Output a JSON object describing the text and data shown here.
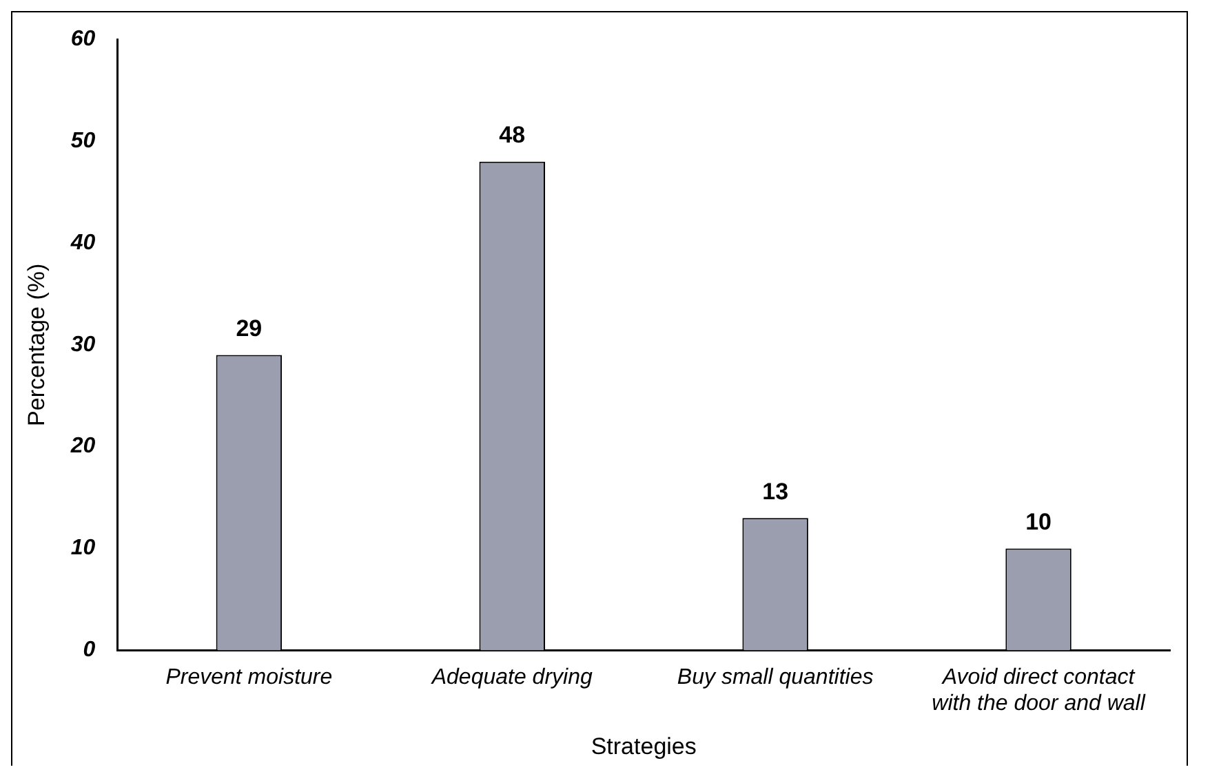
{
  "chart_data": {
    "type": "bar",
    "xlabel": "Strategies",
    "ylabel": "Percentage (%)",
    "categories": [
      "Prevent moisture",
      "Adequate drying",
      "Buy small quantities",
      "Avoid direct contact with the door and wall"
    ],
    "values": [
      29,
      48,
      13,
      10
    ],
    "color": "#9a9eae",
    "ylim": [
      0,
      60
    ],
    "yticks": [
      0,
      10,
      20,
      30,
      40,
      50,
      60
    ],
    "grid": false,
    "data_labels": true
  }
}
